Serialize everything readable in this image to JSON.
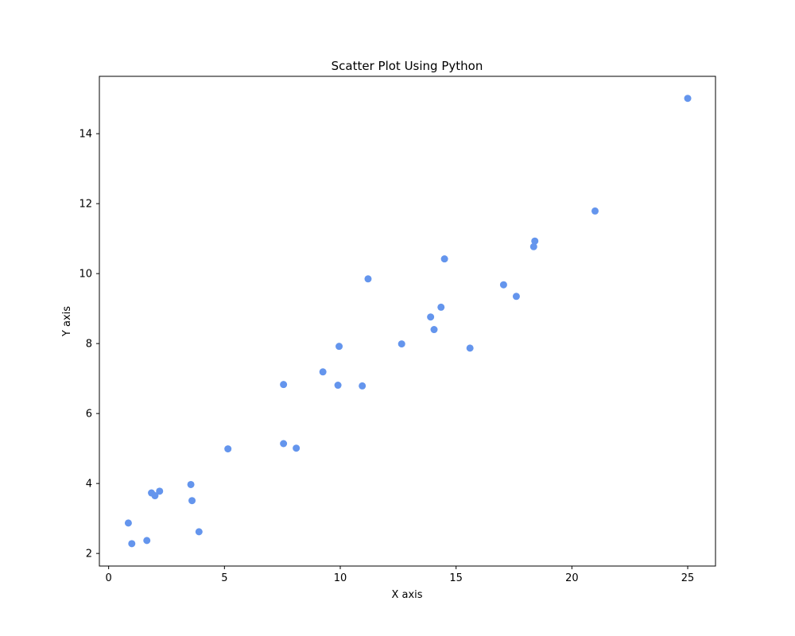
{
  "chart_data": {
    "type": "scatter",
    "title": "Scatter Plot Using Python",
    "xlabel": "X axis",
    "ylabel": "Y axis",
    "xlim": [
      -0.4,
      26.2
    ],
    "ylim": [
      1.64,
      15.64
    ],
    "xticks": [
      0,
      5,
      10,
      15,
      20,
      25
    ],
    "yticks": [
      2,
      4,
      6,
      8,
      10,
      12,
      14
    ],
    "grid": false,
    "marker_color": "#6495ED",
    "points": [
      {
        "x": 0.85,
        "y": 2.87
      },
      {
        "x": 1.0,
        "y": 2.28
      },
      {
        "x": 1.65,
        "y": 2.37
      },
      {
        "x": 1.85,
        "y": 3.73
      },
      {
        "x": 2.0,
        "y": 3.65
      },
      {
        "x": 2.2,
        "y": 3.78
      },
      {
        "x": 3.55,
        "y": 3.97
      },
      {
        "x": 3.6,
        "y": 3.51
      },
      {
        "x": 3.9,
        "y": 2.62
      },
      {
        "x": 5.15,
        "y": 4.99
      },
      {
        "x": 7.55,
        "y": 5.14
      },
      {
        "x": 7.55,
        "y": 6.83
      },
      {
        "x": 8.1,
        "y": 5.01
      },
      {
        "x": 9.25,
        "y": 7.19
      },
      {
        "x": 9.9,
        "y": 6.81
      },
      {
        "x": 9.95,
        "y": 7.92
      },
      {
        "x": 10.95,
        "y": 6.79
      },
      {
        "x": 11.2,
        "y": 9.85
      },
      {
        "x": 12.65,
        "y": 7.99
      },
      {
        "x": 13.9,
        "y": 8.76
      },
      {
        "x": 14.05,
        "y": 8.4
      },
      {
        "x": 14.35,
        "y": 9.04
      },
      {
        "x": 14.5,
        "y": 10.42
      },
      {
        "x": 15.6,
        "y": 7.87
      },
      {
        "x": 17.05,
        "y": 9.68
      },
      {
        "x": 17.6,
        "y": 9.35
      },
      {
        "x": 18.35,
        "y": 10.77
      },
      {
        "x": 18.4,
        "y": 10.93
      },
      {
        "x": 21.0,
        "y": 11.79
      },
      {
        "x": 25.0,
        "y": 15.01
      }
    ]
  }
}
